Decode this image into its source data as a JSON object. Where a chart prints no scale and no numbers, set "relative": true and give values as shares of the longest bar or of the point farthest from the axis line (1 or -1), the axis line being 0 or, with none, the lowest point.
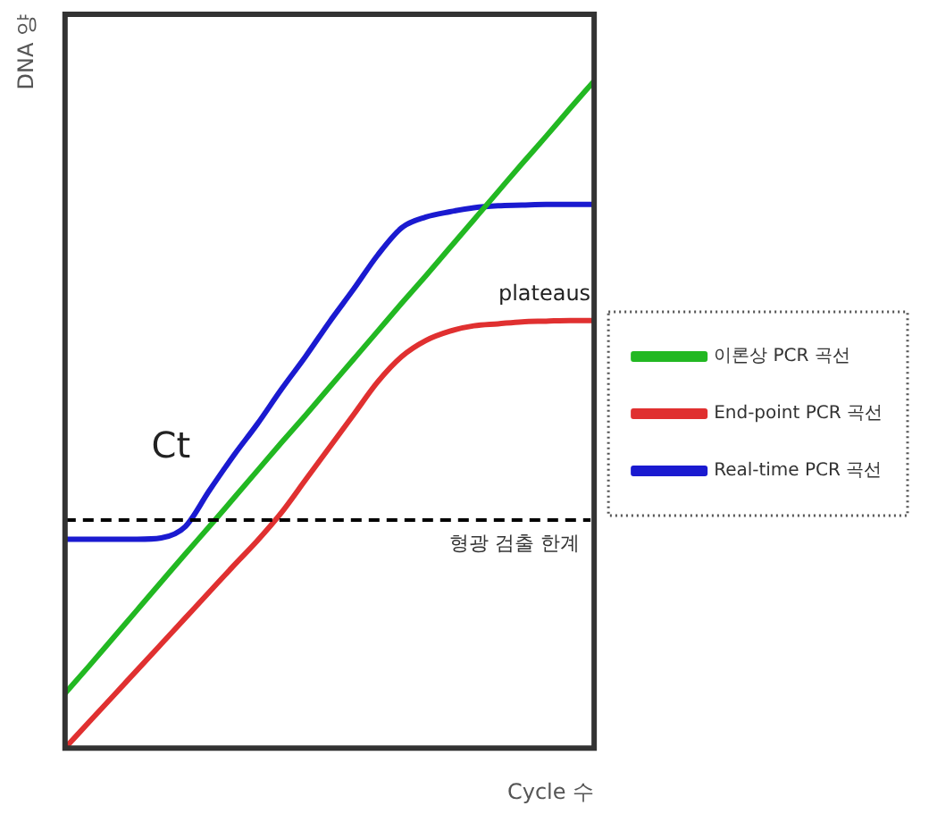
{
  "chart_data": {
    "type": "line",
    "relative": true,
    "xlabel": "Cycle 수",
    "ylabel": "DNA 양",
    "categories": [
      null,
      null,
      null,
      null,
      null,
      null,
      null,
      null,
      null,
      null,
      null,
      null,
      null,
      null,
      null,
      null,
      null,
      null,
      null,
      null,
      null,
      null,
      null
    ],
    "series": [
      {
        "name": "이론상 PCR 곡선",
        "color": "#22b822",
        "values": [
          0.082,
          0.123,
          0.165,
          0.207,
          0.249,
          0.291,
          0.332,
          0.374,
          0.416,
          0.458,
          0.499,
          0.541,
          0.583,
          0.625,
          0.667,
          0.708,
          0.75,
          0.792,
          0.834,
          0.876,
          0.917,
          0.959,
          1.0
        ]
      },
      {
        "name": "End-point PCR 곡선",
        "color": "#e03030",
        "values": [
          0,
          0.039,
          0.078,
          0.117,
          0.156,
          0.195,
          0.234,
          0.273,
          0.311,
          0.353,
          0.402,
          0.451,
          0.5,
          0.549,
          0.587,
          0.611,
          0.625,
          0.633,
          0.636,
          0.639,
          0.64,
          0.641,
          0.641
        ]
      },
      {
        "name": "Real-time PCR 곡선",
        "color": "#1a1ad0",
        "values": [
          0.313,
          0.313,
          0.313,
          0.313,
          0.315,
          0.332,
          0.386,
          0.438,
          0.486,
          0.538,
          0.587,
          0.639,
          0.688,
          0.739,
          0.78,
          0.796,
          0.804,
          0.81,
          0.813,
          0.814,
          0.815,
          0.815,
          0.815
        ]
      }
    ],
    "ref_lines": [
      {
        "axis": "y",
        "value": 0.342,
        "label": "형광 검출 한계",
        "color": "#000000",
        "line_style": "dashed"
      }
    ],
    "annotations": [
      "Ct",
      "plateaus"
    ],
    "legend": "right",
    "grid": false,
    "line_style": "solid",
    "marker": "none"
  }
}
